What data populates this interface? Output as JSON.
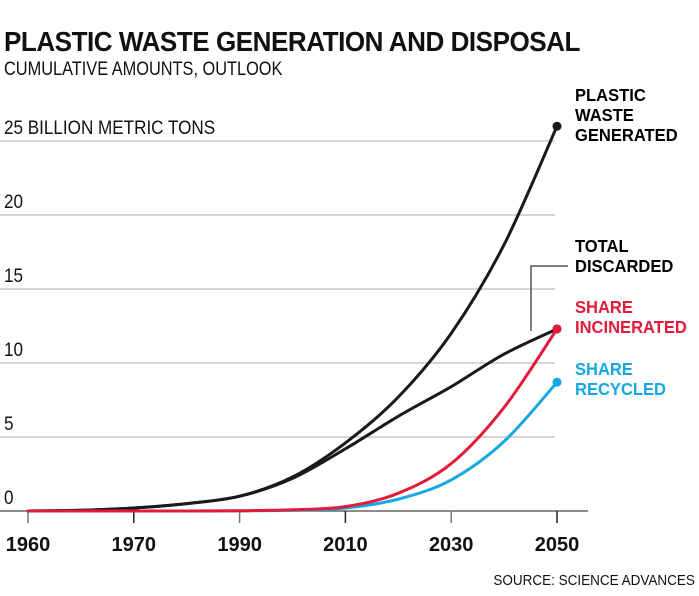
{
  "header": {
    "title": "PLASTIC WASTE GENERATION AND DISPOSAL",
    "subtitle": "CUMULATIVE AMOUNTS, OUTLOOK"
  },
  "footer": {
    "source": "SOURCE: SCIENCE ADVANCES"
  },
  "chart_data": {
    "type": "line",
    "title": "PLASTIC WASTE GENERATION AND DISPOSAL",
    "subtitle": "CUMULATIVE AMOUNTS, OUTLOOK",
    "xlabel": "",
    "ylabel": "BILLION METRIC TONS",
    "x_tick_labels": [
      "1960",
      "1970",
      "1990",
      "2010",
      "2030",
      "2050"
    ],
    "x_note": "Tick labels are evenly spaced categories; values are given at each tick and at midpoints between ticks",
    "x_positions": [
      0,
      0.5,
      1,
      1.5,
      2,
      2.5,
      3,
      3.5,
      4,
      4.5,
      5
    ],
    "y_ticks": [
      0,
      5,
      10,
      15,
      20,
      25
    ],
    "y_tick_labels": [
      "0",
      "5",
      "10",
      "15",
      "20",
      "25 BILLION METRIC TONS"
    ],
    "ylim": [
      0,
      26
    ],
    "grid": true,
    "legend": "direct labels at right end of lines",
    "series": [
      {
        "name": "PLASTIC WASTE GENERATED",
        "label_lines": [
          "PLASTIC",
          "WASTE",
          "GENERATED"
        ],
        "color": "#1a1a1a",
        "values": [
          0,
          0.05,
          0.2,
          0.5,
          1.0,
          2.3,
          4.6,
          7.7,
          12.0,
          18.0,
          26.0
        ]
      },
      {
        "name": "TOTAL DISCARDED",
        "label_lines": [
          "TOTAL",
          "DISCARDED"
        ],
        "color": "#1a1a1a",
        "values": [
          0,
          0.05,
          0.2,
          0.5,
          1.0,
          2.2,
          4.2,
          6.4,
          8.4,
          10.6,
          12.3
        ]
      },
      {
        "name": "SHARE INCINERATED",
        "label_lines": [
          "SHARE",
          "INCINERATED"
        ],
        "color": "#e31b3b",
        "values": [
          0,
          0,
          0,
          0,
          0.02,
          0.08,
          0.3,
          1.2,
          3.2,
          7.0,
          12.3
        ]
      },
      {
        "name": "SHARE RECYCLED",
        "label_lines": [
          "SHARE",
          "RECYCLED"
        ],
        "color": "#16a8e1",
        "values": [
          0,
          0,
          0,
          0,
          0.01,
          0.05,
          0.2,
          0.8,
          2.1,
          4.7,
          8.7
        ]
      }
    ],
    "colors": {
      "grid": "#c8c8c8",
      "axis": "#666666",
      "text": "#111111"
    }
  }
}
